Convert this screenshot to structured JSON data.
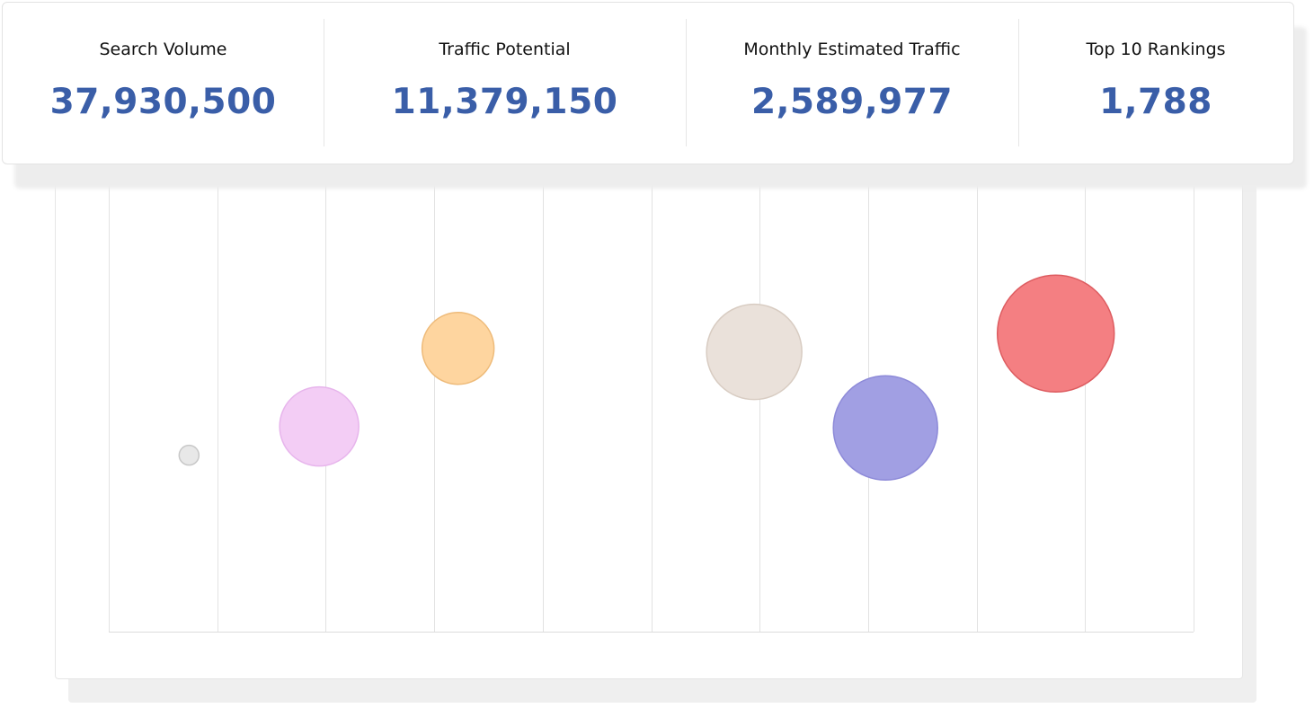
{
  "stats": [
    {
      "label": "Search Volume",
      "value": "37,930,500"
    },
    {
      "label": "Traffic Potential",
      "value": "11,379,150"
    },
    {
      "label": "Monthly Estimated Traffic",
      "value": "2,589,977"
    },
    {
      "label": "Top 10 Rankings",
      "value": "1,788"
    }
  ],
  "chart_data": {
    "type": "scatter",
    "grid": true,
    "bubbles": [
      {
        "x": 0.74,
        "y": 0.355,
        "size": 11,
        "color": "#e8e8e8",
        "stroke": "#c8c8c8"
      },
      {
        "x": 1.94,
        "y": 0.413,
        "size": 44,
        "color": "#f3cdf5",
        "stroke": "#e7b5ec"
      },
      {
        "x": 3.22,
        "y": 0.57,
        "size": 40,
        "color": "#fed59f",
        "stroke": "#eebb7a"
      },
      {
        "x": 5.95,
        "y": 0.563,
        "size": 53,
        "color": "#eae1da",
        "stroke": "#d8ccc2"
      },
      {
        "x": 7.16,
        "y": 0.41,
        "size": 58,
        "color": "#a19fe3",
        "stroke": "#8d8ad8"
      },
      {
        "x": 8.73,
        "y": 0.6,
        "size": 65,
        "color": "#f47f82",
        "stroke": "#dd5c60"
      }
    ],
    "xlim": [
      0,
      10
    ],
    "ylim": [
      0,
      1
    ]
  }
}
